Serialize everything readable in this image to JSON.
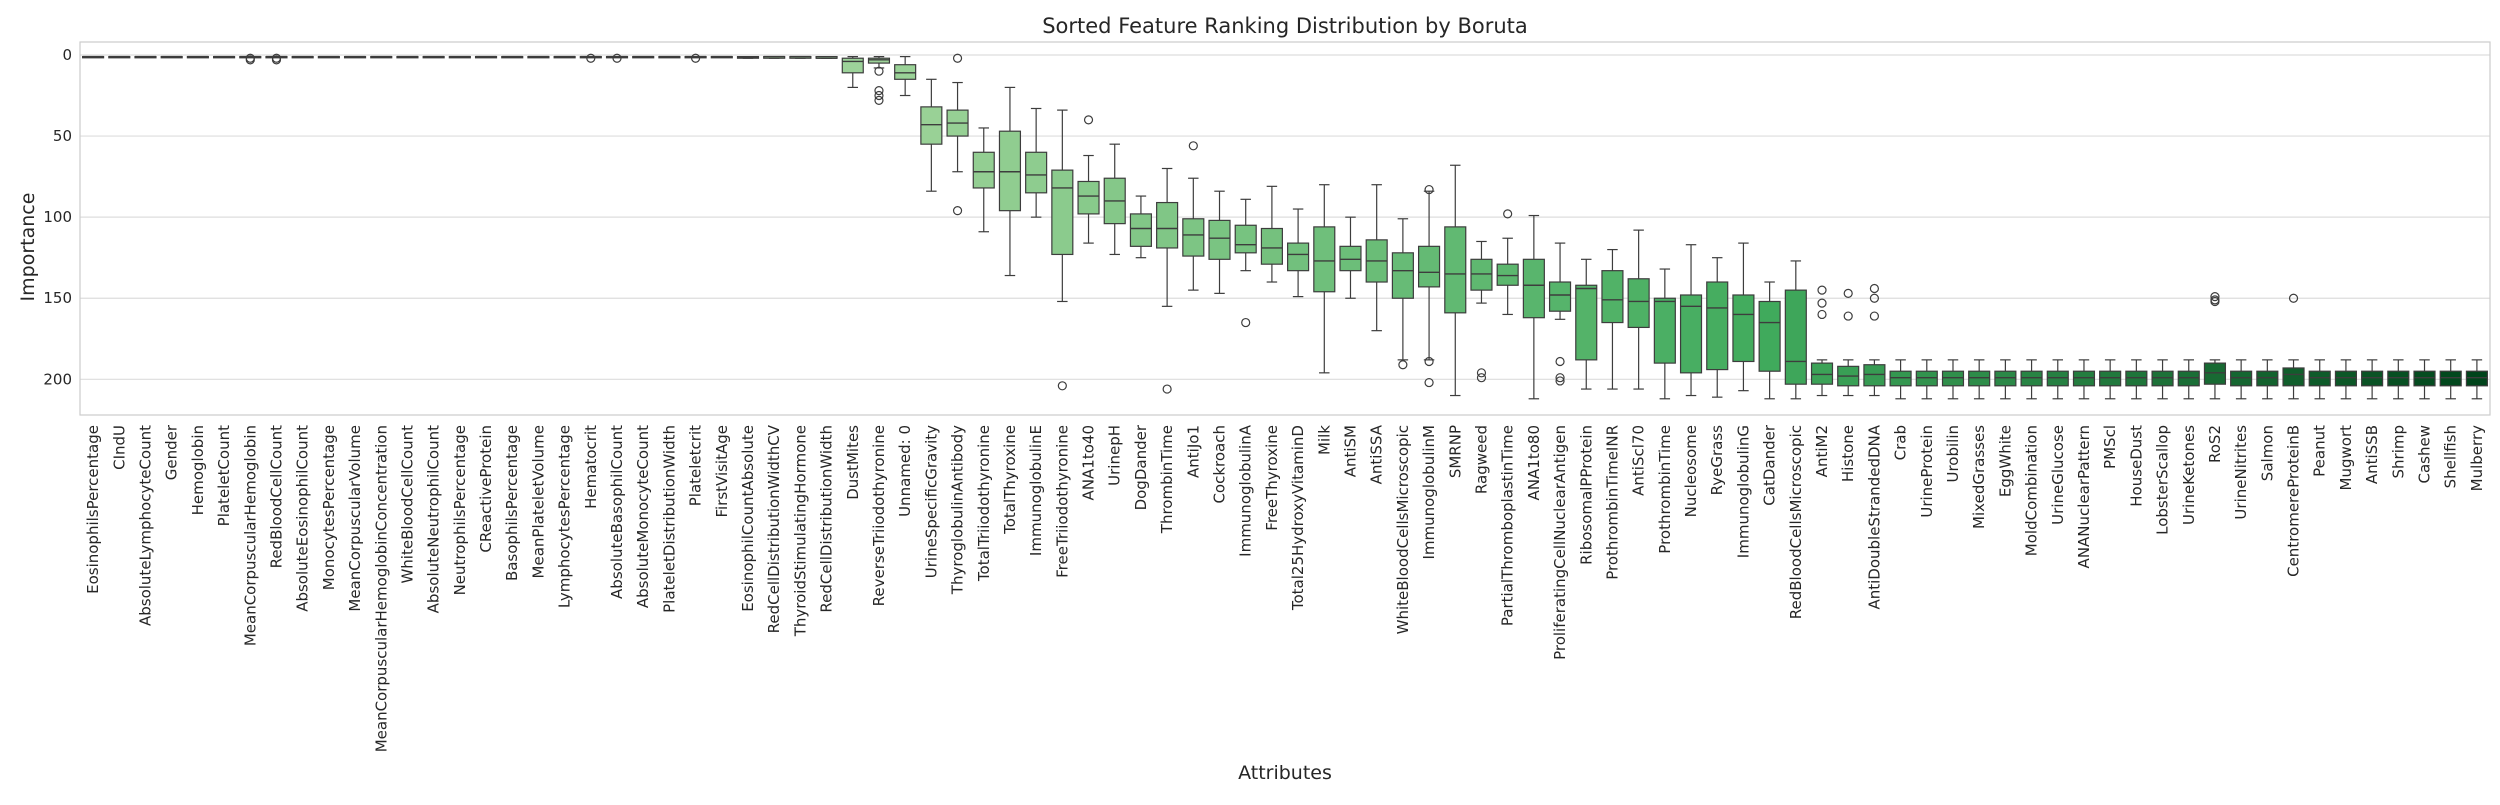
{
  "chart_data": {
    "type": "box",
    "title": "Sorted Feature Ranking Distribution by Boruta",
    "xlabel": "Attributes",
    "ylabel": "Importance",
    "ylim": [
      222,
      -8
    ],
    "yticks": [
      0,
      50,
      100,
      150,
      200
    ],
    "y_inverted": true,
    "grid": "horizontal",
    "palette": "greens",
    "categories": [
      "EosinophilsPercentage",
      "CIndU",
      "AbsoluteLymphocyteCount",
      "Gender",
      "Hemoglobin",
      "PlateletCount",
      "MeanCorpuscularHemoglobin",
      "RedBloodCellCount",
      "AbsoluteEosinophilCount",
      "MonocytesPercentage",
      "MeanCorpuscularVolume",
      "MeanCorpuscularHemoglobinConcentration",
      "WhiteBloodCellCount",
      "AbsoluteNeutrophilCount",
      "NeutrophilsPercentage",
      "CReactiveProtein",
      "BasophilsPercentage",
      "MeanPlateletVolume",
      "LymphocytesPercentage",
      "Hematocrit",
      "AbsoluteBasophilCount",
      "AbsoluteMonocyteCount",
      "PlateletDistributionWidth",
      "Plateletcrit",
      "FirstVisitAge",
      "EosinophilCountAbsolute",
      "RedCellDistributionWidthCV",
      "ThyroidStimulatingHormone",
      "RedCellDistributionWidth",
      "DustMites",
      "ReverseTriiodothyronine",
      "Unnamed: 0",
      "UrineSpecificGravity",
      "ThyroglobulinAntibody",
      "TotalTriiodothyronine",
      "TotalThyroxine",
      "ImmunoglobulinE",
      "FreeTriiodothyronine",
      "ANA1to40",
      "UrinepH",
      "DogDander",
      "ThrombinTime",
      "AntiJo1",
      "Cockroach",
      "ImmunoglobulinA",
      "FreeThyroxine",
      "Total25HydroxyVitaminD",
      "Milk",
      "AntiSM",
      "AntiSSA",
      "WhiteBloodCellsMicroscopic",
      "ImmunoglobulinM",
      "SMRNP",
      "Ragweed",
      "PartialThromboplastinTime",
      "ANA1to80",
      "ProliferatingCellNuclearAntigen",
      "RibosomalPProtein",
      "ProthrombinTimeINR",
      "AntiScl70",
      "ProthrombinTime",
      "Nucleosome",
      "RyeGrass",
      "ImmunoglobulinG",
      "CatDander",
      "RedBloodCellsMicroscopic",
      "AntiM2",
      "Histone",
      "AntiDoubleStrandedDNA",
      "Crab",
      "UrineProtein",
      "Urobilin",
      "MixedGrasses",
      "EggWhite",
      "MoldCombination",
      "UrineGlucose",
      "ANANuclearPattern",
      "PMScl",
      "HouseDust",
      "LobsterScallop",
      "UrineKetones",
      "RoS2",
      "UrineNitrites",
      "Salmon",
      "CentromereProteinB",
      "Peanut",
      "Mugwort",
      "AntiSSB",
      "Shrimp",
      "Cashew",
      "Shellfish",
      "Mulberry"
    ],
    "boxes": [
      {
        "whislo": 1,
        "q1": 1,
        "med": 1,
        "q3": 1,
        "whishi": 1,
        "fliers": []
      },
      {
        "whislo": 1,
        "q1": 1,
        "med": 1,
        "q3": 1,
        "whishi": 1,
        "fliers": []
      },
      {
        "whislo": 1,
        "q1": 1,
        "med": 1,
        "q3": 1,
        "whishi": 1,
        "fliers": []
      },
      {
        "whislo": 1,
        "q1": 1,
        "med": 1,
        "q3": 1,
        "whishi": 1,
        "fliers": []
      },
      {
        "whislo": 1,
        "q1": 1,
        "med": 1,
        "q3": 1,
        "whishi": 1,
        "fliers": []
      },
      {
        "whislo": 1,
        "q1": 1,
        "med": 1,
        "q3": 1,
        "whishi": 1,
        "fliers": []
      },
      {
        "whislo": 1,
        "q1": 1,
        "med": 1,
        "q3": 1,
        "whishi": 1,
        "fliers": [
          2,
          3
        ]
      },
      {
        "whislo": 1,
        "q1": 1,
        "med": 1,
        "q3": 1,
        "whishi": 1,
        "fliers": [
          2,
          3
        ]
      },
      {
        "whislo": 1,
        "q1": 1,
        "med": 1,
        "q3": 1,
        "whishi": 1,
        "fliers": []
      },
      {
        "whislo": 1,
        "q1": 1,
        "med": 1,
        "q3": 1,
        "whishi": 1,
        "fliers": []
      },
      {
        "whislo": 1,
        "q1": 1,
        "med": 1,
        "q3": 1,
        "whishi": 1,
        "fliers": []
      },
      {
        "whislo": 1,
        "q1": 1,
        "med": 1,
        "q3": 1,
        "whishi": 1,
        "fliers": []
      },
      {
        "whislo": 1,
        "q1": 1,
        "med": 1,
        "q3": 1,
        "whishi": 1,
        "fliers": []
      },
      {
        "whislo": 1,
        "q1": 1,
        "med": 1,
        "q3": 1,
        "whishi": 1,
        "fliers": []
      },
      {
        "whislo": 1,
        "q1": 1,
        "med": 1,
        "q3": 1,
        "whishi": 1,
        "fliers": []
      },
      {
        "whislo": 1,
        "q1": 1,
        "med": 1,
        "q3": 1,
        "whishi": 1,
        "fliers": []
      },
      {
        "whislo": 1,
        "q1": 1,
        "med": 1,
        "q3": 1,
        "whishi": 1,
        "fliers": []
      },
      {
        "whislo": 1,
        "q1": 1,
        "med": 1,
        "q3": 1,
        "whishi": 1,
        "fliers": []
      },
      {
        "whislo": 1,
        "q1": 1,
        "med": 1,
        "q3": 1,
        "whishi": 1,
        "fliers": []
      },
      {
        "whislo": 1,
        "q1": 1,
        "med": 1,
        "q3": 1,
        "whishi": 1,
        "fliers": [
          2
        ]
      },
      {
        "whislo": 1,
        "q1": 1,
        "med": 1,
        "q3": 1,
        "whishi": 1,
        "fliers": [
          2
        ]
      },
      {
        "whislo": 1,
        "q1": 1,
        "med": 1,
        "q3": 1,
        "whishi": 1,
        "fliers": []
      },
      {
        "whislo": 1,
        "q1": 1,
        "med": 1,
        "q3": 1,
        "whishi": 1,
        "fliers": []
      },
      {
        "whislo": 1,
        "q1": 1,
        "med": 1,
        "q3": 1,
        "whishi": 1,
        "fliers": [
          2
        ]
      },
      {
        "whislo": 1,
        "q1": 1,
        "med": 1,
        "q3": 1,
        "whishi": 1,
        "fliers": []
      },
      {
        "whislo": 1,
        "q1": 1,
        "med": 1.5,
        "q3": 2,
        "whishi": 2,
        "fliers": []
      },
      {
        "whislo": 1,
        "q1": 1,
        "med": 1,
        "q3": 2,
        "whishi": 2,
        "fliers": []
      },
      {
        "whislo": 1,
        "q1": 1,
        "med": 1,
        "q3": 2,
        "whishi": 2,
        "fliers": []
      },
      {
        "whislo": 1,
        "q1": 1,
        "med": 2,
        "q3": 2,
        "whishi": 2,
        "fliers": []
      },
      {
        "whislo": 1,
        "q1": 2,
        "med": 4,
        "q3": 11,
        "whishi": 20,
        "fliers": []
      },
      {
        "whislo": 1,
        "q1": 2,
        "med": 3,
        "q3": 5,
        "whishi": 8,
        "fliers": [
          10,
          22,
          25,
          28
        ]
      },
      {
        "whislo": 1,
        "q1": 6,
        "med": 11,
        "q3": 15,
        "whishi": 25,
        "fliers": []
      },
      {
        "whislo": 15,
        "q1": 32,
        "med": 43,
        "q3": 55,
        "whishi": 84,
        "fliers": []
      },
      {
        "whislo": 17,
        "q1": 34,
        "med": 42,
        "q3": 50,
        "whishi": 72,
        "fliers": [
          2,
          96
        ]
      },
      {
        "whislo": 45,
        "q1": 60,
        "med": 72,
        "q3": 82,
        "whishi": 109,
        "fliers": []
      },
      {
        "whislo": 20,
        "q1": 47,
        "med": 72,
        "q3": 96,
        "whishi": 136,
        "fliers": []
      },
      {
        "whislo": 33,
        "q1": 60,
        "med": 74,
        "q3": 85,
        "whishi": 100,
        "fliers": []
      },
      {
        "whislo": 34,
        "q1": 71,
        "med": 82,
        "q3": 123,
        "whishi": 152,
        "fliers": [
          204
        ]
      },
      {
        "whislo": 62,
        "q1": 78,
        "med": 87,
        "q3": 98,
        "whishi": 116,
        "fliers": [
          40
        ]
      },
      {
        "whislo": 55,
        "q1": 76,
        "med": 90,
        "q3": 104,
        "whishi": 123,
        "fliers": []
      },
      {
        "whislo": 87,
        "q1": 98,
        "med": 107,
        "q3": 118,
        "whishi": 125,
        "fliers": []
      },
      {
        "whislo": 70,
        "q1": 91,
        "med": 107,
        "q3": 119,
        "whishi": 155,
        "fliers": [
          206
        ]
      },
      {
        "whislo": 76,
        "q1": 101,
        "med": 111,
        "q3": 124,
        "whishi": 145,
        "fliers": [
          56
        ]
      },
      {
        "whislo": 84,
        "q1": 102,
        "med": 113,
        "q3": 126,
        "whishi": 147,
        "fliers": []
      },
      {
        "whislo": 89,
        "q1": 105,
        "med": 117,
        "q3": 122,
        "whishi": 133,
        "fliers": [
          165
        ]
      },
      {
        "whislo": 81,
        "q1": 107,
        "med": 119,
        "q3": 129,
        "whishi": 140,
        "fliers": []
      },
      {
        "whislo": 95,
        "q1": 116,
        "med": 123,
        "q3": 133,
        "whishi": 149,
        "fliers": []
      },
      {
        "whislo": 80,
        "q1": 106,
        "med": 127,
        "q3": 146,
        "whishi": 196,
        "fliers": []
      },
      {
        "whislo": 100,
        "q1": 118,
        "med": 126,
        "q3": 133,
        "whishi": 150,
        "fliers": []
      },
      {
        "whislo": 80,
        "q1": 114,
        "med": 127,
        "q3": 140,
        "whishi": 170,
        "fliers": []
      },
      {
        "whislo": 101,
        "q1": 122,
        "med": 133,
        "q3": 150,
        "whishi": 188,
        "fliers": [
          191
        ]
      },
      {
        "whislo": 84,
        "q1": 118,
        "med": 134,
        "q3": 143,
        "whishi": 188,
        "fliers": [
          83,
          189,
          202
        ]
      },
      {
        "whislo": 68,
        "q1": 106,
        "med": 135,
        "q3": 159,
        "whishi": 210,
        "fliers": []
      },
      {
        "whislo": 115,
        "q1": 126,
        "med": 135,
        "q3": 145,
        "whishi": 153,
        "fliers": [
          196,
          199
        ]
      },
      {
        "whislo": 113,
        "q1": 129,
        "med": 136,
        "q3": 142,
        "whishi": 160,
        "fliers": [
          98
        ]
      },
      {
        "whislo": 99,
        "q1": 126,
        "med": 142,
        "q3": 162,
        "whishi": 212,
        "fliers": []
      },
      {
        "whislo": 116,
        "q1": 140,
        "med": 148,
        "q3": 158,
        "whishi": 163,
        "fliers": [
          189,
          199,
          201
        ]
      },
      {
        "whislo": 126,
        "q1": 142,
        "med": 144,
        "q3": 188,
        "whishi": 206,
        "fliers": []
      },
      {
        "whislo": 120,
        "q1": 133,
        "med": 151,
        "q3": 165,
        "whishi": 206,
        "fliers": []
      },
      {
        "whislo": 108,
        "q1": 138,
        "med": 152,
        "q3": 168,
        "whishi": 206,
        "fliers": []
      },
      {
        "whislo": 132,
        "q1": 150,
        "med": 152,
        "q3": 190,
        "whishi": 212,
        "fliers": []
      },
      {
        "whislo": 117,
        "q1": 148,
        "med": 155,
        "q3": 196,
        "whishi": 210,
        "fliers": []
      },
      {
        "whislo": 125,
        "q1": 140,
        "med": 156,
        "q3": 194,
        "whishi": 211,
        "fliers": []
      },
      {
        "whislo": 116,
        "q1": 148,
        "med": 160,
        "q3": 189,
        "whishi": 207,
        "fliers": []
      },
      {
        "whislo": 140,
        "q1": 152,
        "med": 165,
        "q3": 195,
        "whishi": 212,
        "fliers": []
      },
      {
        "whislo": 127,
        "q1": 145,
        "med": 189,
        "q3": 203,
        "whishi": 212,
        "fliers": []
      },
      {
        "whislo": 188,
        "q1": 190,
        "med": 197,
        "q3": 203,
        "whishi": 210,
        "fliers": [
          145,
          153,
          160
        ]
      },
      {
        "whislo": 188,
        "q1": 192,
        "med": 198,
        "q3": 204,
        "whishi": 210,
        "fliers": [
          147,
          161
        ]
      },
      {
        "whislo": 188,
        "q1": 191,
        "med": 197,
        "q3": 204,
        "whishi": 210,
        "fliers": [
          144,
          150,
          161
        ]
      },
      {
        "whislo": 188,
        "q1": 195,
        "med": 199,
        "q3": 204,
        "whishi": 212,
        "fliers": []
      },
      {
        "whislo": 188,
        "q1": 195,
        "med": 199,
        "q3": 204,
        "whishi": 212,
        "fliers": []
      },
      {
        "whislo": 188,
        "q1": 195,
        "med": 199,
        "q3": 204,
        "whishi": 212,
        "fliers": []
      },
      {
        "whislo": 188,
        "q1": 195,
        "med": 199,
        "q3": 204,
        "whishi": 212,
        "fliers": []
      },
      {
        "whislo": 188,
        "q1": 195,
        "med": 199,
        "q3": 204,
        "whishi": 212,
        "fliers": []
      },
      {
        "whislo": 188,
        "q1": 195,
        "med": 199,
        "q3": 204,
        "whishi": 212,
        "fliers": []
      },
      {
        "whislo": 188,
        "q1": 195,
        "med": 199,
        "q3": 204,
        "whishi": 212,
        "fliers": []
      },
      {
        "whislo": 188,
        "q1": 195,
        "med": 199,
        "q3": 204,
        "whishi": 212,
        "fliers": []
      },
      {
        "whislo": 188,
        "q1": 195,
        "med": 199,
        "q3": 204,
        "whishi": 212,
        "fliers": []
      },
      {
        "whislo": 188,
        "q1": 195,
        "med": 199,
        "q3": 204,
        "whishi": 212,
        "fliers": []
      },
      {
        "whislo": 188,
        "q1": 195,
        "med": 199,
        "q3": 204,
        "whishi": 212,
        "fliers": []
      },
      {
        "whislo": 188,
        "q1": 195,
        "med": 199,
        "q3": 204,
        "whishi": 212,
        "fliers": []
      },
      {
        "whislo": 188,
        "q1": 190,
        "med": 196,
        "q3": 203,
        "whishi": 212,
        "fliers": [
          149,
          151,
          152
        ]
      },
      {
        "whislo": 188,
        "q1": 195,
        "med": 199,
        "q3": 204,
        "whishi": 212,
        "fliers": []
      },
      {
        "whislo": 188,
        "q1": 195,
        "med": 199,
        "q3": 204,
        "whishi": 212,
        "fliers": []
      },
      {
        "whislo": 188,
        "q1": 193,
        "med": 197,
        "q3": 204,
        "whishi": 212,
        "fliers": [
          150
        ]
      },
      {
        "whislo": 188,
        "q1": 195,
        "med": 199,
        "q3": 204,
        "whishi": 212,
        "fliers": []
      },
      {
        "whislo": 188,
        "q1": 195,
        "med": 199,
        "q3": 204,
        "whishi": 212,
        "fliers": []
      },
      {
        "whislo": 188,
        "q1": 195,
        "med": 199,
        "q3": 204,
        "whishi": 212,
        "fliers": []
      },
      {
        "whislo": 188,
        "q1": 195,
        "med": 199,
        "q3": 204,
        "whishi": 212,
        "fliers": []
      },
      {
        "whislo": 188,
        "q1": 195,
        "med": 199,
        "q3": 204,
        "whishi": 212,
        "fliers": []
      },
      {
        "whislo": 188,
        "q1": 195,
        "med": 199,
        "q3": 204,
        "whishi": 212,
        "fliers": []
      },
      {
        "whislo": 188,
        "q1": 195,
        "med": 199,
        "q3": 204,
        "whishi": 212,
        "fliers": []
      }
    ]
  }
}
